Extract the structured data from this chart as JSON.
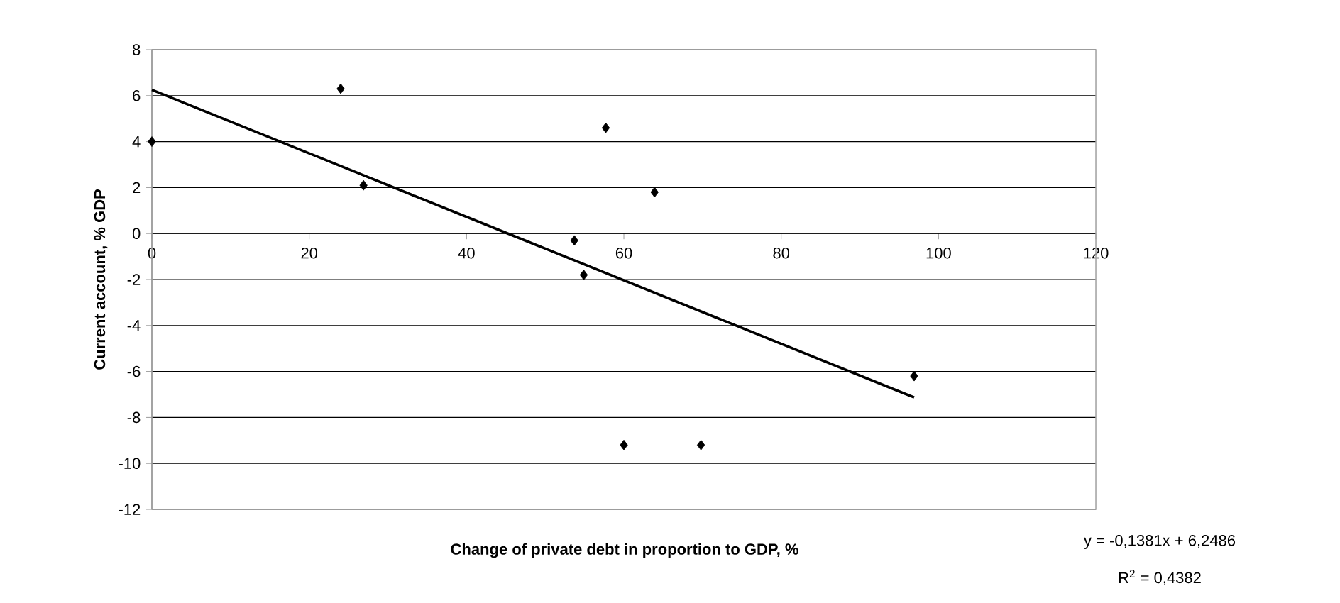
{
  "chart_data": {
    "type": "scatter",
    "xlabel": "Change of private debt in proportion to GDP, %",
    "ylabel": "Current account, % GDP",
    "annotations": [
      "y = -0,1381x + 6,2486",
      "R$^{2}$ = 0,4382"
    ],
    "xlim": [
      0,
      120
    ],
    "ylim": [
      -12,
      8
    ],
    "xticks": [
      0,
      20,
      40,
      60,
      80,
      100,
      120
    ],
    "yticks": [
      -12,
      -10,
      -8,
      -6,
      -4,
      -2,
      0,
      2,
      4,
      6,
      8
    ],
    "grid": "y",
    "series": [
      {
        "color": "#000000",
        "marker": "diamond",
        "x": [
          0,
          24,
          26.9,
          53.7,
          54.9,
          57.7,
          60,
          63.9,
          69.8,
          96.9
        ],
        "values": [
          4.0,
          6.3,
          2.1,
          -0.3,
          -1.8,
          4.6,
          -9.2,
          1.8,
          -9.2,
          -6.2
        ]
      },
      {
        "type": "line",
        "color": "#000000",
        "marker": "none",
        "x": [
          0,
          96.9
        ],
        "values": [
          6.25,
          -7.13
        ]
      }
    ]
  }
}
